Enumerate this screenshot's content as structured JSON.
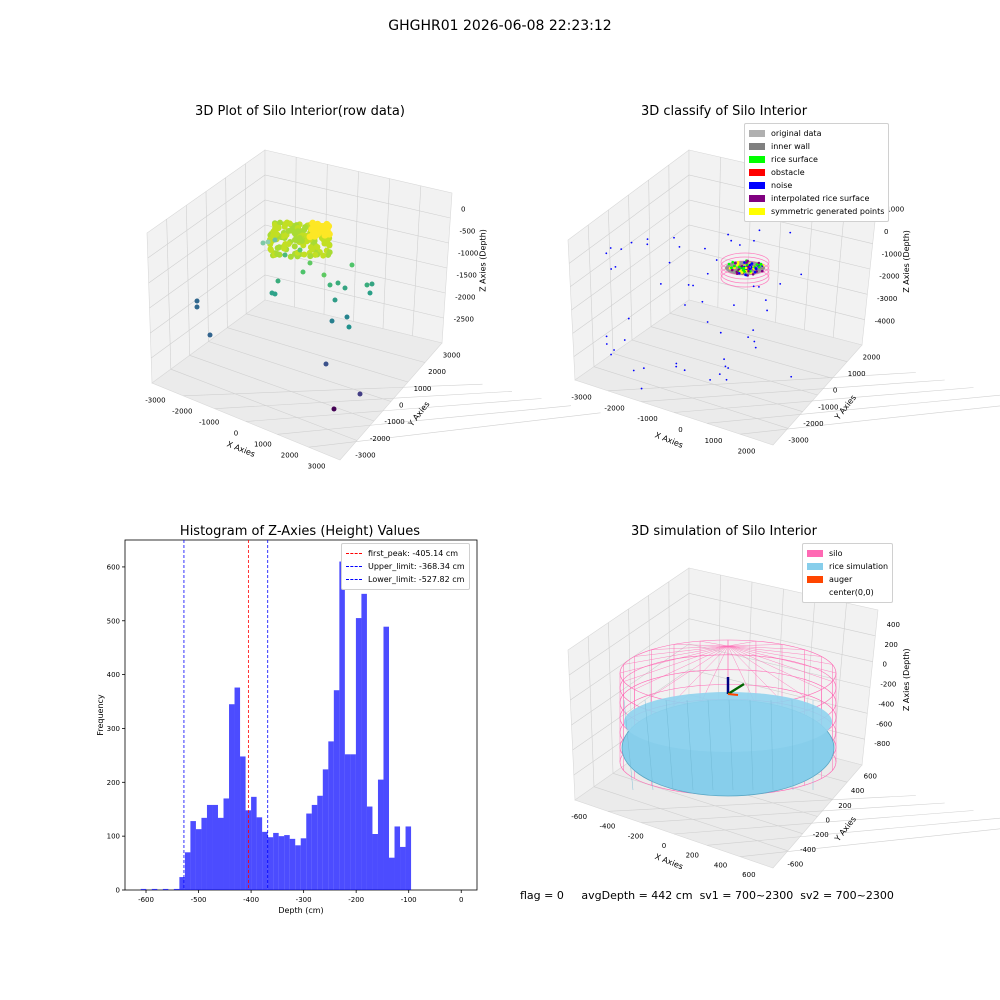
{
  "suptitle": "GHGHR01 2026-06-08 22:23:12",
  "panels": {
    "raw": {
      "title": "3D Plot of Silo Interior(row data)",
      "xlabel": "X Axies",
      "ylabel": "Y Axies",
      "zlabel": "Z Axies (Depth)",
      "xticks": [
        "-3000",
        "-2000",
        "-1000",
        "0",
        "1000",
        "2000",
        "3000"
      ],
      "yticks": [
        "3000",
        "2000",
        "1000",
        "0",
        "-1000",
        "-2000",
        "-3000"
      ],
      "zticks": [
        "0",
        "-500",
        "-1000",
        "-1500",
        "-2000",
        "-2500"
      ]
    },
    "classify": {
      "title": "3D classify of Silo Interior",
      "xlabel": "X Axies",
      "ylabel": "Y Axies",
      "zlabel": "Z Axies (Depth)",
      "xticks": [
        "-3000",
        "-2000",
        "-1000",
        "0",
        "1000",
        "2000"
      ],
      "yticks": [
        "2000",
        "1000",
        "0",
        "-1000",
        "-2000",
        "-3000"
      ],
      "zticks": [
        "1000",
        "0",
        "-1000",
        "-2000",
        "-3000",
        "-4000"
      ],
      "legend": [
        {
          "label": "original data",
          "color": "#b0b0b0"
        },
        {
          "label": "inner wall",
          "color": "#808080"
        },
        {
          "label": "rice surface",
          "color": "#00ff00"
        },
        {
          "label": "obstacle",
          "color": "#ff0000"
        },
        {
          "label": "noise",
          "color": "#0000ff"
        },
        {
          "label": "interpolated rice surface",
          "color": "#800080"
        },
        {
          "label": "symmetric generated points",
          "color": "#ffff00"
        }
      ]
    },
    "simulation": {
      "title": "3D simulation of Silo Interior",
      "xlabel": "X Axies",
      "ylabel": "Y Axies",
      "zlabel": "Z Axies (Depth)",
      "xticks": [
        "-600",
        "-400",
        "-200",
        "0",
        "200",
        "400",
        "600"
      ],
      "yticks": [
        "600",
        "400",
        "200",
        "0",
        "-200",
        "-400",
        "-600"
      ],
      "zticks": [
        "400",
        "200",
        "0",
        "-200",
        "-400",
        "-600",
        "-800"
      ],
      "legend": [
        {
          "label": "silo",
          "color": "#ff69b4"
        },
        {
          "label": "rice simulation",
          "color": "#87ceeb"
        },
        {
          "label": "auger",
          "color": "#ff4500"
        },
        {
          "label": "center(0,0)",
          "color": "#ffffff"
        }
      ]
    }
  },
  "chart_data": {
    "type": "bar",
    "title": "Histogram of Z-Axies (Height) Values",
    "xlabel": "Depth (cm)",
    "ylabel": "Frequency",
    "xlim": [
      -640,
      30
    ],
    "ylim": [
      0,
      650
    ],
    "xticks": [
      -600,
      -500,
      -400,
      -300,
      -200,
      -100,
      0
    ],
    "yticks": [
      0,
      100,
      200,
      300,
      400,
      500,
      600
    ],
    "bin_width": 10.5,
    "bin_edges_start": -610,
    "values": [
      2,
      0,
      2,
      0,
      2,
      0,
      2,
      24,
      70,
      128,
      113,
      134,
      158,
      158,
      134,
      170,
      345,
      376,
      248,
      148,
      173,
      135,
      108,
      98,
      106,
      100,
      102,
      95,
      83,
      96,
      142,
      158,
      175,
      224,
      276,
      371,
      610,
      252,
      252,
      505,
      550,
      155,
      104,
      205,
      489,
      60,
      118,
      80,
      118
    ],
    "series_color": "#0000ff",
    "vlines": [
      {
        "label": "first_peak: -405.14 cm",
        "x": -405.14,
        "color": "#ff0000"
      },
      {
        "label": "Upper_limit: -368.34 cm",
        "x": -368.34,
        "color": "#0000ff"
      },
      {
        "label": "Lower_limit: -527.82 cm",
        "x": -527.82,
        "color": "#0000ff"
      }
    ],
    "legend_position": "top-right"
  },
  "footer": {
    "flag": "flag = 0",
    "avg": "avgDepth = 442 cm",
    "sv1": "sv1 = 700~2300",
    "sv2": "sv2 = 700~2300"
  }
}
